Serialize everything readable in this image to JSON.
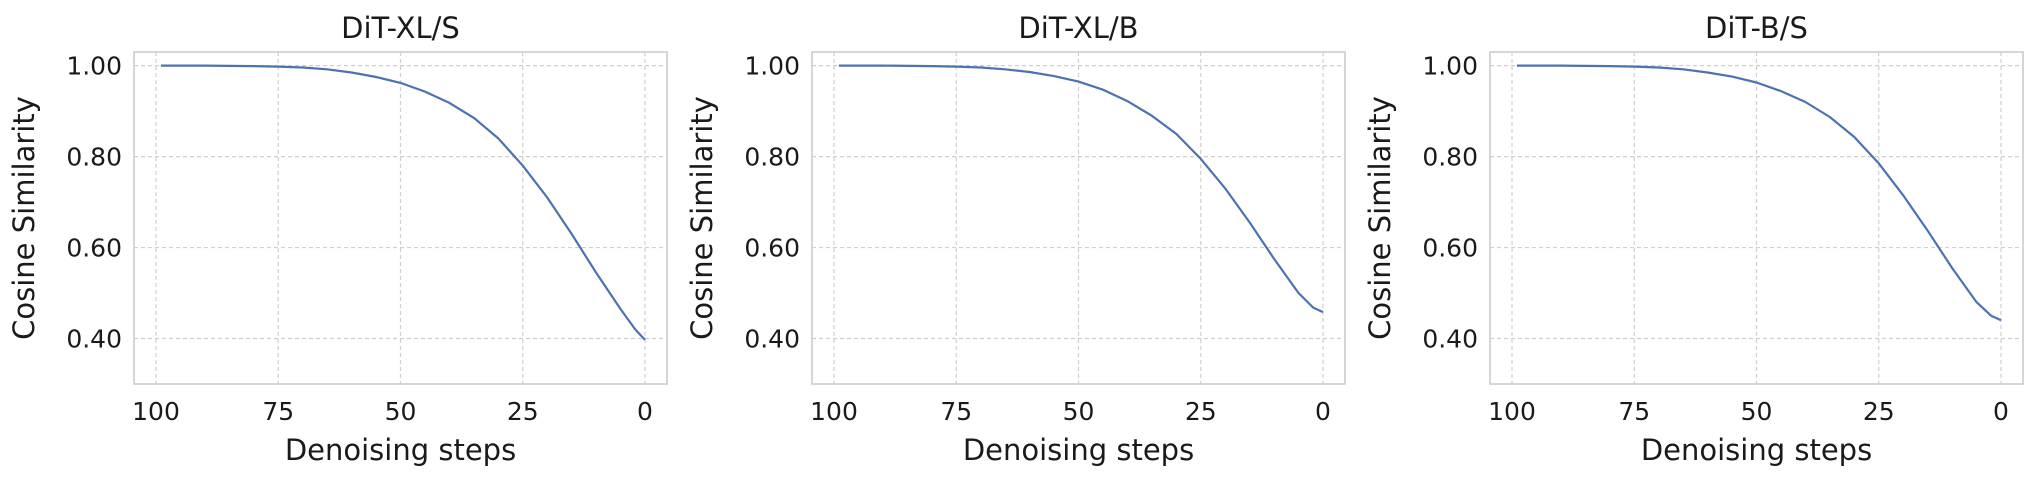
{
  "style": {
    "line_color": "#4c72b0",
    "grid": true,
    "grid_style": "dashed"
  },
  "chart_data": [
    {
      "type": "line",
      "title": "DiT-XL/S",
      "xlabel": "Denoising steps",
      "ylabel": "Cosine Similarity",
      "xlim": [
        100,
        0
      ],
      "ylim": [
        0.3,
        1.03
      ],
      "xticks": [
        100,
        75,
        50,
        25,
        0
      ],
      "xtick_labels": [
        "100",
        "75",
        "50",
        "25",
        "0"
      ],
      "yticks": [
        0.4,
        0.6,
        0.8,
        1.0
      ],
      "ytick_labels": [
        "0.40",
        "0.60",
        "0.80",
        "1.00"
      ],
      "series": [
        {
          "x": [
            99,
            90,
            80,
            75,
            70,
            65,
            60,
            55,
            50,
            45,
            40,
            35,
            30,
            25,
            20,
            15,
            10,
            5,
            2,
            0
          ],
          "y": [
            1.0,
            1.0,
            0.999,
            0.998,
            0.996,
            0.992,
            0.985,
            0.975,
            0.962,
            0.943,
            0.918,
            0.885,
            0.84,
            0.78,
            0.71,
            0.63,
            0.545,
            0.465,
            0.42,
            0.397
          ]
        }
      ]
    },
    {
      "type": "line",
      "title": "DiT-XL/B",
      "xlabel": "Denoising steps",
      "ylabel": "Cosine Similarity",
      "xlim": [
        100,
        0
      ],
      "ylim": [
        0.3,
        1.03
      ],
      "xticks": [
        100,
        75,
        50,
        25,
        0
      ],
      "xtick_labels": [
        "100",
        "75",
        "50",
        "25",
        "0"
      ],
      "yticks": [
        0.4,
        0.6,
        0.8,
        1.0
      ],
      "ytick_labels": [
        "0.40",
        "0.60",
        "0.80",
        "1.00"
      ],
      "series": [
        {
          "x": [
            99,
            90,
            80,
            75,
            70,
            65,
            60,
            55,
            50,
            45,
            40,
            35,
            30,
            25,
            20,
            15,
            10,
            5,
            2,
            0
          ],
          "y": [
            1.0,
            1.0,
            0.999,
            0.998,
            0.996,
            0.992,
            0.986,
            0.977,
            0.965,
            0.947,
            0.922,
            0.89,
            0.85,
            0.795,
            0.73,
            0.655,
            0.575,
            0.5,
            0.468,
            0.458
          ]
        }
      ]
    },
    {
      "type": "line",
      "title": "DiT-B/S",
      "xlabel": "Denoising steps",
      "ylabel": "Cosine Similarity",
      "xlim": [
        100,
        0
      ],
      "ylim": [
        0.3,
        1.03
      ],
      "xticks": [
        100,
        75,
        50,
        25,
        0
      ],
      "xtick_labels": [
        "100",
        "75",
        "50",
        "25",
        "0"
      ],
      "yticks": [
        0.4,
        0.6,
        0.8,
        1.0
      ],
      "ytick_labels": [
        "0.40",
        "0.60",
        "0.80",
        "1.00"
      ],
      "series": [
        {
          "x": [
            99,
            90,
            80,
            75,
            70,
            65,
            60,
            55,
            50,
            45,
            40,
            35,
            30,
            25,
            20,
            15,
            10,
            5,
            2,
            0
          ],
          "y": [
            1.0,
            1.0,
            0.999,
            0.998,
            0.996,
            0.992,
            0.985,
            0.976,
            0.963,
            0.944,
            0.92,
            0.887,
            0.843,
            0.785,
            0.715,
            0.637,
            0.555,
            0.48,
            0.45,
            0.44
          ]
        }
      ]
    }
  ]
}
